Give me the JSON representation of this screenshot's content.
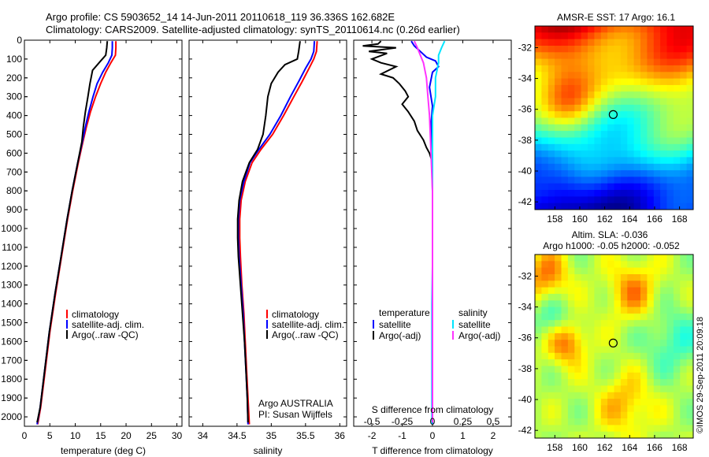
{
  "title_line1": "Argo profile: CS 5903652_14 14-Jun-2011 20110618_119 36.336S 162.682E",
  "title_line2": "Climatology: CARS2009. Satellite-adjusted climatology: synTS_20110614.nc (0.26d earlier)",
  "credit": "©IMOS 29-Sep-2011 20:09:18",
  "colors": {
    "climatology": "#ff0000",
    "satellite": "#0000ff",
    "argo": "#000000",
    "sal_satellite": "#00e5ff",
    "sal_argo": "#ff33ff",
    "map_marker": "#000000"
  },
  "chart_data": [
    {
      "type": "line",
      "panel": "temperature",
      "xlabel": "temperature (deg C)",
      "xlim": [
        0,
        31
      ],
      "xticks": [
        0,
        5,
        10,
        15,
        20,
        25,
        30
      ],
      "ylim": [
        2050,
        0
      ],
      "yticks": [
        0,
        100,
        200,
        300,
        400,
        500,
        600,
        700,
        800,
        900,
        1000,
        1100,
        1200,
        1300,
        1400,
        1500,
        1600,
        1700,
        1800,
        1900,
        2000
      ],
      "legend": [
        "climatology",
        "satellite-adj. clim.",
        "Argo(..raw -QC)"
      ],
      "series": [
        {
          "name": "climatology",
          "color": "#ff0000",
          "points": [
            [
              18.0,
              5
            ],
            [
              18.0,
              40
            ],
            [
              17.9,
              80
            ],
            [
              17.0,
              120
            ],
            [
              16.0,
              170
            ],
            [
              15.0,
              230
            ],
            [
              14.0,
              300
            ],
            [
              13.0,
              380
            ],
            [
              12.2,
              460
            ],
            [
              11.5,
              540
            ],
            [
              10.6,
              650
            ],
            [
              9.5,
              800
            ],
            [
              8.5,
              950
            ],
            [
              7.3,
              1150
            ],
            [
              6.1,
              1350
            ],
            [
              5.0,
              1550
            ],
            [
              4.1,
              1750
            ],
            [
              3.2,
              1950
            ],
            [
              2.6,
              2040
            ]
          ]
        },
        {
          "name": "satellite-adj. clim.",
          "color": "#0000ff",
          "points": [
            [
              17.3,
              5
            ],
            [
              17.3,
              40
            ],
            [
              17.2,
              80
            ],
            [
              16.5,
              120
            ],
            [
              15.4,
              170
            ],
            [
              14.3,
              230
            ],
            [
              13.5,
              300
            ],
            [
              12.7,
              380
            ],
            [
              12.0,
              460
            ],
            [
              11.4,
              540
            ],
            [
              10.5,
              650
            ],
            [
              9.4,
              800
            ],
            [
              8.4,
              950
            ],
            [
              7.2,
              1150
            ],
            [
              6.0,
              1350
            ],
            [
              4.9,
              1550
            ],
            [
              4.0,
              1750
            ],
            [
              3.1,
              1950
            ],
            [
              2.5,
              2040
            ]
          ]
        },
        {
          "name": "Argo(..raw -QC)",
          "color": "#000000",
          "points": [
            [
              16.3,
              5
            ],
            [
              16.2,
              40
            ],
            [
              16.0,
              80
            ],
            [
              15.0,
              110
            ],
            [
              13.4,
              160
            ],
            [
              12.9,
              230
            ],
            [
              12.5,
              300
            ],
            [
              12.0,
              380
            ],
            [
              11.6,
              460
            ],
            [
              11.3,
              540
            ],
            [
              10.5,
              650
            ],
            [
              9.4,
              800
            ],
            [
              8.4,
              950
            ],
            [
              7.2,
              1150
            ],
            [
              6.0,
              1350
            ],
            [
              4.9,
              1550
            ],
            [
              4.0,
              1750
            ],
            [
              3.1,
              1950
            ],
            [
              2.5,
              2030
            ]
          ]
        }
      ]
    },
    {
      "type": "line",
      "panel": "salinity",
      "xlabel": "salinity",
      "xlim": [
        33.8,
        36.1
      ],
      "xticks": [
        34,
        34.5,
        35,
        35.5,
        36
      ],
      "ylim": [
        2050,
        0
      ],
      "legend": [
        "climatology",
        "satellite-adj. clim.",
        "Argo(..raw -QC)"
      ],
      "annotations": [
        "Argo AUSTRALIA",
        "PI: Susan Wijffels"
      ],
      "series": [
        {
          "name": "climatology",
          "color": "#ff0000",
          "points": [
            [
              35.67,
              5
            ],
            [
              35.66,
              60
            ],
            [
              35.62,
              100
            ],
            [
              35.55,
              150
            ],
            [
              35.45,
              220
            ],
            [
              35.33,
              300
            ],
            [
              35.18,
              400
            ],
            [
              35.02,
              500
            ],
            [
              34.85,
              580
            ],
            [
              34.72,
              650
            ],
            [
              34.62,
              750
            ],
            [
              34.56,
              850
            ],
            [
              34.54,
              950
            ],
            [
              34.54,
              1050
            ],
            [
              34.55,
              1150
            ],
            [
              34.57,
              1300
            ],
            [
              34.6,
              1450
            ],
            [
              34.62,
              1600
            ],
            [
              34.64,
              1750
            ],
            [
              34.66,
              1900
            ],
            [
              34.68,
              2040
            ]
          ]
        },
        {
          "name": "satellite-adj. clim.",
          "color": "#0000ff",
          "points": [
            [
              35.63,
              5
            ],
            [
              35.62,
              60
            ],
            [
              35.58,
              100
            ],
            [
              35.5,
              150
            ],
            [
              35.4,
              220
            ],
            [
              35.28,
              300
            ],
            [
              35.14,
              400
            ],
            [
              34.98,
              500
            ],
            [
              34.82,
              580
            ],
            [
              34.69,
              650
            ],
            [
              34.6,
              750
            ],
            [
              34.54,
              850
            ],
            [
              34.52,
              950
            ],
            [
              34.52,
              1050
            ],
            [
              34.53,
              1150
            ],
            [
              34.56,
              1300
            ],
            [
              34.59,
              1450
            ],
            [
              34.61,
              1600
            ],
            [
              34.63,
              1750
            ],
            [
              34.65,
              1900
            ],
            [
              34.66,
              2040
            ]
          ]
        },
        {
          "name": "Argo(..raw -QC)",
          "color": "#000000",
          "points": [
            [
              35.42,
              5
            ],
            [
              35.4,
              60
            ],
            [
              35.38,
              100
            ],
            [
              35.2,
              130
            ],
            [
              35.1,
              170
            ],
            [
              35.0,
              230
            ],
            [
              34.95,
              300
            ],
            [
              34.92,
              400
            ],
            [
              34.88,
              500
            ],
            [
              34.8,
              580
            ],
            [
              34.68,
              650
            ],
            [
              34.58,
              750
            ],
            [
              34.53,
              850
            ],
            [
              34.51,
              950
            ],
            [
              34.51,
              1050
            ],
            [
              34.52,
              1150
            ],
            [
              34.55,
              1300
            ],
            [
              34.58,
              1450
            ],
            [
              34.61,
              1600
            ],
            [
              34.63,
              1750
            ],
            [
              34.65,
              1900
            ],
            [
              34.66,
              2030
            ]
          ]
        }
      ]
    },
    {
      "type": "line",
      "panel": "difference",
      "xlabel": "T difference from climatology",
      "xlabel_top": "S difference from climatology",
      "xlim": [
        -2.6,
        2.6
      ],
      "xticks": [
        -2,
        -1,
        0,
        1,
        2
      ],
      "xticks_top": [
        "-0.5",
        "-0.25",
        "0",
        "0.25",
        "0.5"
      ],
      "xticks_top_values": [
        -2,
        -1,
        0,
        1,
        2
      ],
      "ylim": [
        2050,
        0
      ],
      "legend_temperature_header": "temperature",
      "legend_salinity_header": "salinity",
      "legend_temperature": [
        "satellite",
        "Argo(-adj)"
      ],
      "legend_salinity": [
        "satellite",
        "Argo(-adj)"
      ],
      "series": [
        {
          "name": "satellite",
          "color": "#0000ff",
          "points": [
            [
              -0.7,
              5
            ],
            [
              -0.6,
              30
            ],
            [
              -0.4,
              60
            ],
            [
              -0.2,
              90
            ],
            [
              0.1,
              110
            ],
            [
              0.2,
              140
            ],
            [
              0.0,
              170
            ],
            [
              -0.1,
              250
            ],
            [
              0.0,
              350
            ],
            [
              -0.05,
              450
            ],
            [
              -0.02,
              600
            ],
            [
              0.0,
              800
            ],
            [
              0.0,
              1100
            ],
            [
              0.0,
              1500
            ],
            [
              0.0,
              1800
            ],
            [
              0.0,
              2040
            ]
          ]
        },
        {
          "name": "Argo(-adj)",
          "color": "#000000",
          "points": [
            [
              -1.7,
              5
            ],
            [
              -1.8,
              20
            ],
            [
              -2.3,
              30
            ],
            [
              -1.2,
              40
            ],
            [
              -2.1,
              60
            ],
            [
              -1.5,
              70
            ],
            [
              -2.0,
              100
            ],
            [
              -1.7,
              120
            ],
            [
              -1.2,
              140
            ],
            [
              -1.7,
              180
            ],
            [
              -1.3,
              200
            ],
            [
              -1.1,
              230
            ],
            [
              -0.9,
              270
            ],
            [
              -0.8,
              300
            ],
            [
              -1.0,
              340
            ],
            [
              -0.8,
              380
            ],
            [
              -0.6,
              430
            ],
            [
              -0.5,
              480
            ],
            [
              -0.3,
              530
            ],
            [
              -0.2,
              570
            ],
            [
              -0.1,
              600
            ],
            [
              0.0,
              650
            ],
            [
              0.0,
              800
            ],
            [
              0.0,
              1000
            ],
            [
              0.0,
              1300
            ],
            [
              0.0,
              1500
            ],
            [
              0.0,
              1800
            ],
            [
              0.0,
              2030
            ]
          ]
        },
        {
          "name": "sal-satellite",
          "color": "#00e5ff",
          "points": [
            [
              0.4,
              5
            ],
            [
              0.3,
              40
            ],
            [
              0.2,
              80
            ],
            [
              0.2,
              120
            ],
            [
              0.1,
              200
            ],
            [
              0.1,
              300
            ],
            [
              0.0,
              400
            ],
            [
              0.0,
              600
            ],
            [
              0.0,
              800
            ],
            [
              0.0,
              1000
            ],
            [
              0.0,
              1200
            ],
            [
              -0.02,
              1400
            ],
            [
              -0.02,
              1600
            ],
            [
              -0.02,
              1800
            ],
            [
              -0.02,
              2040
            ]
          ]
        },
        {
          "name": "sal-argo",
          "color": "#ff33ff",
          "points": [
            [
              -0.6,
              5
            ],
            [
              -0.5,
              40
            ],
            [
              -0.4,
              80
            ],
            [
              -0.3,
              120
            ],
            [
              -0.2,
              200
            ],
            [
              -0.15,
              300
            ],
            [
              -0.1,
              400
            ],
            [
              -0.05,
              600
            ],
            [
              0.0,
              800
            ],
            [
              0.0,
              1000
            ],
            [
              0.0,
              1200
            ],
            [
              0.0,
              1400
            ],
            [
              0.0,
              1600
            ],
            [
              0.0,
              1800
            ],
            [
              0.0,
              2030
            ]
          ]
        }
      ]
    },
    {
      "type": "heatmap",
      "panel": "sst_map",
      "title": "AMSR-E SST: 17 Argo: 16.1",
      "xticks": [
        158,
        160,
        162,
        164,
        166,
        168
      ],
      "yticks": [
        -32,
        -34,
        -36,
        -38,
        -40,
        -42
      ],
      "xlim": [
        156.4,
        169.1
      ],
      "ylim": [
        -42.5,
        -30.6
      ],
      "marker": [
        162.68,
        -36.34
      ]
    },
    {
      "type": "heatmap",
      "panel": "sla_map",
      "title_line1": "Altim. SLA: -0.036",
      "title_line2": "Argo h1000: -0.05 h2000: -0.052",
      "xticks": [
        158,
        160,
        162,
        164,
        166,
        168
      ],
      "yticks": [
        -32,
        -34,
        -36,
        -38,
        -40,
        -42
      ],
      "xlim": [
        156.4,
        169.1
      ],
      "ylim": [
        -42.5,
        -30.6
      ],
      "marker": [
        162.68,
        -36.34
      ]
    }
  ]
}
